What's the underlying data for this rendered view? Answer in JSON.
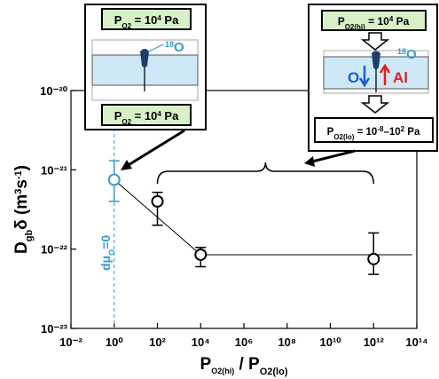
{
  "chart_data": {
    "type": "scatter",
    "xscale": "log",
    "yscale": "log",
    "x_label": [
      "P",
      "O2(hi)",
      " / P",
      "O2(lo)"
    ],
    "y_label": [
      "D",
      "gb",
      "δ  (m",
      "3",
      "s",
      "-1",
      ")"
    ],
    "xlim": [
      0.01,
      100000000000000.0
    ],
    "ylim": [
      1e-23,
      1e-20
    ],
    "xticks": [
      {
        "value": 0.01,
        "label": "10⁻²"
      },
      {
        "value": 1,
        "label": "10⁰"
      },
      {
        "value": 100,
        "label": "10²"
      },
      {
        "value": 10000,
        "label": "10⁴"
      },
      {
        "value": 1000000,
        "label": "10⁶"
      },
      {
        "value": 100000000,
        "label": "10⁸"
      },
      {
        "value": 10000000000,
        "label": "10¹⁰"
      },
      {
        "value": 1000000000000,
        "label": "10¹²"
      },
      {
        "value": 100000000000000,
        "label": "10¹⁴"
      }
    ],
    "yticks": [
      {
        "value": 1e-23,
        "label": "10⁻²³"
      },
      {
        "value": 1e-22,
        "label": "10⁻²²"
      },
      {
        "value": 1e-21,
        "label": "10⁻²¹"
      },
      {
        "value": 1e-20,
        "label": "10⁻²⁰"
      }
    ],
    "points": {
      "x": [
        1,
        100,
        10000,
        1000000000000
      ],
      "y": [
        7.5e-22,
        4e-22,
        8.5e-23,
        7.5e-23
      ],
      "y_low": [
        4e-22,
        2e-22,
        6e-23,
        4.8e-23
      ],
      "y_high": [
        1.3e-21,
        5.2e-22,
        1.05e-22,
        1.6e-22
      ],
      "colors": [
        "#3a9cc4",
        "#000000",
        "#000000",
        "#000000"
      ]
    },
    "fit_line": {
      "x": [
        1,
        10000,
        60000000000000
      ],
      "y": [
        7.5e-22,
        8.5e-23,
        8.5e-23
      ],
      "color": "#000000"
    },
    "reference_line": {
      "x": 1,
      "label": [
        "dμ",
        "O",
        "=0"
      ],
      "color": "#3a9cc4"
    },
    "brace": {
      "x": [
        100,
        1000000000000
      ]
    },
    "insets": [
      {
        "top": [
          "P",
          "O2",
          " = 10",
          "4",
          " Pa"
        ],
        "isotope": [
          "18",
          "O"
        ],
        "bottom": [
          "P",
          "O2",
          " = 10",
          "4",
          " Pa"
        ]
      },
      {
        "top": [
          "P",
          "O2(hi)",
          " = 10",
          "4",
          " Pa"
        ],
        "isotope": [
          "18",
          "O"
        ],
        "flux_in": "O",
        "flux_out": "Al",
        "bottom": [
          "P",
          "O2(lo)",
          " = 10",
          "-8",
          "–10",
          "2",
          " Pa"
        ]
      }
    ]
  }
}
